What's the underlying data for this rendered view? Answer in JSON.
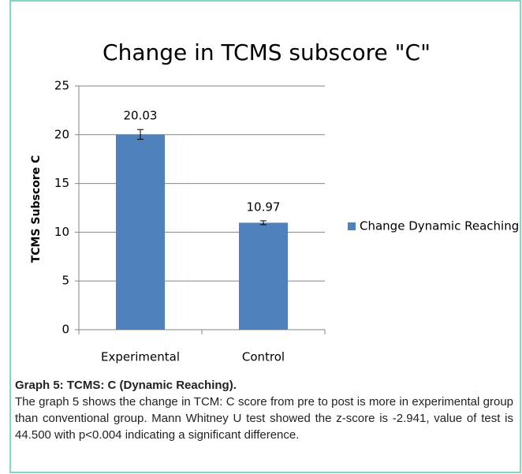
{
  "chart_data": {
    "type": "bar",
    "title": "Change in TCMS subscore \"C\"",
    "y_label": "TCMS Subscore C",
    "categories": [
      "Experimental",
      "Control"
    ],
    "series": [
      {
        "name": "Change Dynamic Reaching",
        "color": "#4f81bd",
        "values": [
          20.03,
          10.97
        ],
        "errors": [
          0.5,
          0.2
        ]
      }
    ],
    "ylim": [
      0,
      25
    ],
    "yticks": [
      0,
      5,
      10,
      15,
      20,
      25
    ],
    "grid": true,
    "legend": "right"
  },
  "caption": {
    "heading": "Graph 5: TCMS: C (Dynamic Reaching).",
    "text": "The graph 5 shows the change in TCM: C score from pre to post is more in experimental group than conventional group. Mann Whitney U test showed the z-score is -2.941, value of test is 44.500 with p<0.004 indicating a significant difference."
  }
}
